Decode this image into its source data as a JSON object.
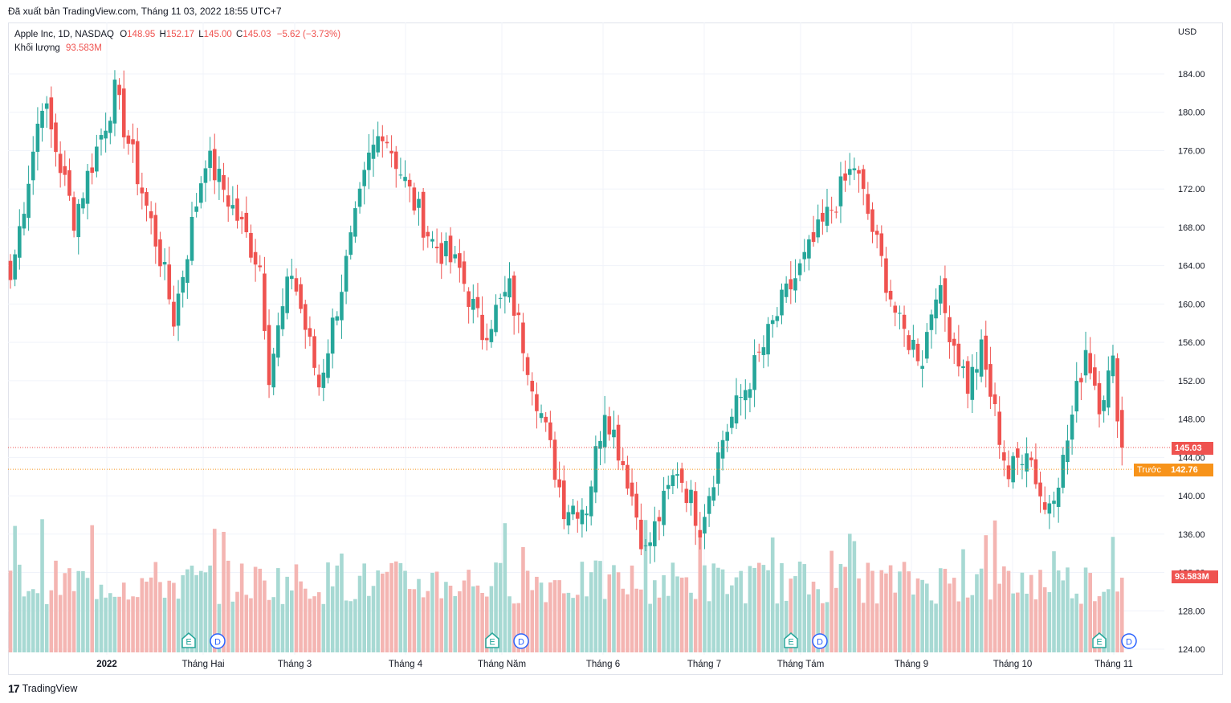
{
  "header": {
    "published": "Đã xuất bản TradingView.com, Tháng 11 03, 2022 18:55 UTC+7"
  },
  "legend": {
    "symbol": "Apple Inc, 1D, NASDAQ",
    "o_label": "O",
    "o_value": "148.95",
    "h_label": "H",
    "h_value": "152.17",
    "l_label": "L",
    "l_value": "145.00",
    "c_label": "C",
    "c_value": "145.03",
    "change": "−5.62 (−3.73%)",
    "volume_label": "Khối lượng",
    "volume_value": "93.583M"
  },
  "axis": {
    "currency": "USD"
  },
  "tags": {
    "last_price": "145.03",
    "prev_label": "Trước",
    "prev_close": "142.76",
    "volume": "93.583M"
  },
  "footer": {
    "logo": "17",
    "brand": "TradingView"
  },
  "colors": {
    "up": "#26a69a",
    "down": "#ef5350",
    "up_vol": "#a7d9d3",
    "down_vol": "#f4b5b2",
    "grid": "#f0f3fa",
    "prev": "#f7931a"
  },
  "chart_data": {
    "type": "candlestick",
    "title": "Apple Inc, 1D, NASDAQ",
    "x_tick_labels": [
      "2022",
      "Tháng Hai",
      "Tháng 3",
      "Tháng 4",
      "Tháng Năm",
      "Tháng 6",
      "Tháng 7",
      "Tháng Tám",
      "Tháng 9",
      "Tháng 10",
      "Tháng 11"
    ],
    "y_tick_labels": [
      "124.00",
      "128.00",
      "132.00",
      "136.00",
      "140.00",
      "144.00",
      "148.00",
      "152.00",
      "156.00",
      "160.00",
      "164.00",
      "168.00",
      "172.00",
      "176.00",
      "180.00",
      "184.00"
    ],
    "ylim": [
      124,
      184
    ],
    "last_price": 145.03,
    "previous_close": 142.76,
    "events": [
      {
        "type": "E",
        "month": "Tháng Hai"
      },
      {
        "type": "D",
        "month": "Tháng Hai"
      },
      {
        "type": "E",
        "month": "Tháng Năm"
      },
      {
        "type": "D",
        "month": "Tháng Năm"
      },
      {
        "type": "E",
        "month": "Tháng Tám"
      },
      {
        "type": "D",
        "month": "Tháng Tám"
      },
      {
        "type": "E",
        "month": "Tháng 11"
      },
      {
        "type": "D",
        "month": "Tháng 11"
      }
    ],
    "anchors": [
      {
        "i": 0,
        "c": 162.5
      },
      {
        "i": 7,
        "c": 181.5
      },
      {
        "i": 14,
        "c": 169.0
      },
      {
        "i": 23,
        "c": 182.0
      },
      {
        "i": 33,
        "c": 165.0
      },
      {
        "i": 36,
        "c": 158.5
      },
      {
        "i": 43,
        "c": 175.5
      },
      {
        "i": 47,
        "c": 172.0
      },
      {
        "i": 55,
        "c": 164.0
      },
      {
        "i": 57,
        "c": 153.0
      },
      {
        "i": 62,
        "c": 163.5
      },
      {
        "i": 68,
        "c": 151.5
      },
      {
        "i": 73,
        "c": 162.0
      },
      {
        "i": 79,
        "c": 175.0
      },
      {
        "i": 82,
        "c": 178.5
      },
      {
        "i": 88,
        "c": 171.5
      },
      {
        "i": 93,
        "c": 166.5
      },
      {
        "i": 99,
        "c": 163.5
      },
      {
        "i": 104,
        "c": 157.0
      },
      {
        "i": 110,
        "c": 161.5
      },
      {
        "i": 117,
        "c": 148.5
      },
      {
        "i": 122,
        "c": 139.0
      },
      {
        "i": 127,
        "c": 139.0
      },
      {
        "i": 131,
        "c": 149.5
      },
      {
        "i": 136,
        "c": 142.0
      },
      {
        "i": 140,
        "c": 134.0
      },
      {
        "i": 147,
        "c": 143.0
      },
      {
        "i": 152,
        "c": 137.0
      },
      {
        "i": 157,
        "c": 146.0
      },
      {
        "i": 166,
        "c": 155.5
      },
      {
        "i": 170,
        "c": 160.0
      },
      {
        "i": 175,
        "c": 164.5
      },
      {
        "i": 181,
        "c": 170.0
      },
      {
        "i": 186,
        "c": 174.5
      },
      {
        "i": 191,
        "c": 166.0
      },
      {
        "i": 196,
        "c": 157.5
      },
      {
        "i": 201,
        "c": 154.5
      },
      {
        "i": 204,
        "c": 162.0
      },
      {
        "i": 211,
        "c": 151.5
      },
      {
        "i": 214,
        "c": 155.0
      },
      {
        "i": 220,
        "c": 142.0
      },
      {
        "i": 224,
        "c": 145.5
      },
      {
        "i": 228,
        "c": 138.5
      },
      {
        "i": 232,
        "c": 143.5
      },
      {
        "i": 237,
        "c": 155.5
      },
      {
        "i": 240,
        "c": 150.0
      },
      {
        "i": 243,
        "c": 153.5
      },
      {
        "i": 245,
        "c": 145.03
      }
    ],
    "volume": {
      "last": "93.583M"
    }
  }
}
